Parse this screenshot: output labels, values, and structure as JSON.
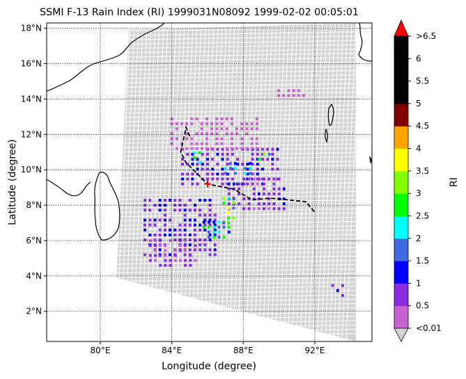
{
  "chart_data": {
    "type": "heatmap",
    "title": "SSMI F-13 Rain Index (RI) 1999031N08092 1999-02-02 00:05:01",
    "xlabel": "Longitude (degree)",
    "ylabel": "Latitude (degree)",
    "xlim": [
      77,
      95.2
    ],
    "ylim": [
      0.3,
      18.3
    ],
    "xticks": [
      {
        "value": 80,
        "label": "80°E"
      },
      {
        "value": 84,
        "label": "84°E"
      },
      {
        "value": 88,
        "label": "88°E"
      },
      {
        "value": 92,
        "label": "92°E"
      }
    ],
    "yticks": [
      {
        "value": 2,
        "label": "2°N"
      },
      {
        "value": 4,
        "label": "4°N"
      },
      {
        "value": 6,
        "label": "6°N"
      },
      {
        "value": 8,
        "label": "8°N"
      },
      {
        "value": 10,
        "label": "10°N"
      },
      {
        "value": 12,
        "label": "12°N"
      },
      {
        "value": 14,
        "label": "14°N"
      },
      {
        "value": 16,
        "label": "16°N"
      },
      {
        "value": 18,
        "label": "18°N"
      }
    ],
    "grid": true,
    "colorbar": {
      "label": "RI",
      "bounds": [
        0.01,
        0.5,
        1,
        1.5,
        2,
        2.5,
        3,
        3.5,
        4,
        4.5,
        5,
        5.5,
        6,
        6.5
      ],
      "tick_labels": [
        "<0.01",
        "0.5",
        "1",
        "1.5",
        "2",
        "2.5",
        "3",
        "3.5",
        "4",
        "4.5",
        "5",
        "5.5",
        "6",
        ">6.5"
      ],
      "colors": [
        "#c864d2",
        "#8a2be2",
        "#0000ff",
        "#4169e1",
        "#00ffff",
        "#00ff00",
        "#7fff00",
        "#ffff00",
        "#ffa500",
        "#800000",
        "#000000",
        "#000000",
        "#000000"
      ],
      "under_color": "#d3d3d3",
      "over_color": "#ff0000"
    },
    "swath": {
      "corners": [
        [
          81.6,
          17.9
        ],
        [
          94.3,
          18.3
        ],
        [
          94.3,
          0.3
        ],
        [
          80.9,
          3.9
        ]
      ],
      "color": "#d3d3d3"
    },
    "storm_center": {
      "lon": 86.0,
      "lat": 9.2,
      "color": "#ff0000"
    },
    "track": [
      [
        85.0,
        11.9
      ],
      [
        84.8,
        12.4
      ],
      [
        84.5,
        11.0
      ],
      [
        84.8,
        10.4
      ],
      [
        86.0,
        9.2
      ],
      [
        87.5,
        8.9
      ],
      [
        88.5,
        8.3
      ],
      [
        89.5,
        8.4
      ],
      [
        91.5,
        8.2
      ],
      [
        92.0,
        7.6
      ]
    ],
    "rain_regions": [
      {
        "lon": [
          82.5,
          86.5
        ],
        "lat": [
          5.2,
          8.4
        ],
        "value": 1.0
      },
      {
        "lon": [
          84.6,
          90.1
        ],
        "lat": [
          9.2,
          11.4
        ],
        "value": 0.9
      },
      {
        "lon": [
          87.2,
          90.5
        ],
        "lat": [
          7.8,
          9.6
        ],
        "value": 0.8
      },
      {
        "lon": [
          84.0,
          89.0
        ],
        "lat": [
          11.2,
          13.0
        ],
        "value": 0.3
      },
      {
        "lon": [
          82.8,
          85.5
        ],
        "lat": [
          4.6,
          6.2
        ],
        "value": 0.6
      },
      {
        "lon": [
          85.8,
          87.4
        ],
        "lat": [
          6.2,
          7.2
        ],
        "value": 2.2
      },
      {
        "lon": [
          86.9,
          87.5
        ],
        "lat": [
          7.0,
          8.6
        ],
        "value": 2.7
      },
      {
        "lon": [
          87.0,
          88.6
        ],
        "lat": [
          9.8,
          10.6
        ],
        "value": 2.3
      },
      {
        "lon": [
          88.9,
          89.9
        ],
        "lat": [
          10.6,
          11.1
        ],
        "value": 2.3
      },
      {
        "lon": [
          85.0,
          85.6
        ],
        "lat": [
          10.4,
          11.0
        ],
        "value": 2.1
      },
      {
        "lon": [
          93.0,
          93.8
        ],
        "lat": [
          2.9,
          3.5
        ],
        "value": 0.9
      },
      {
        "lon": [
          89.7,
          91.5
        ],
        "lat": [
          14.2,
          14.7
        ],
        "value": 0.3
      }
    ]
  }
}
